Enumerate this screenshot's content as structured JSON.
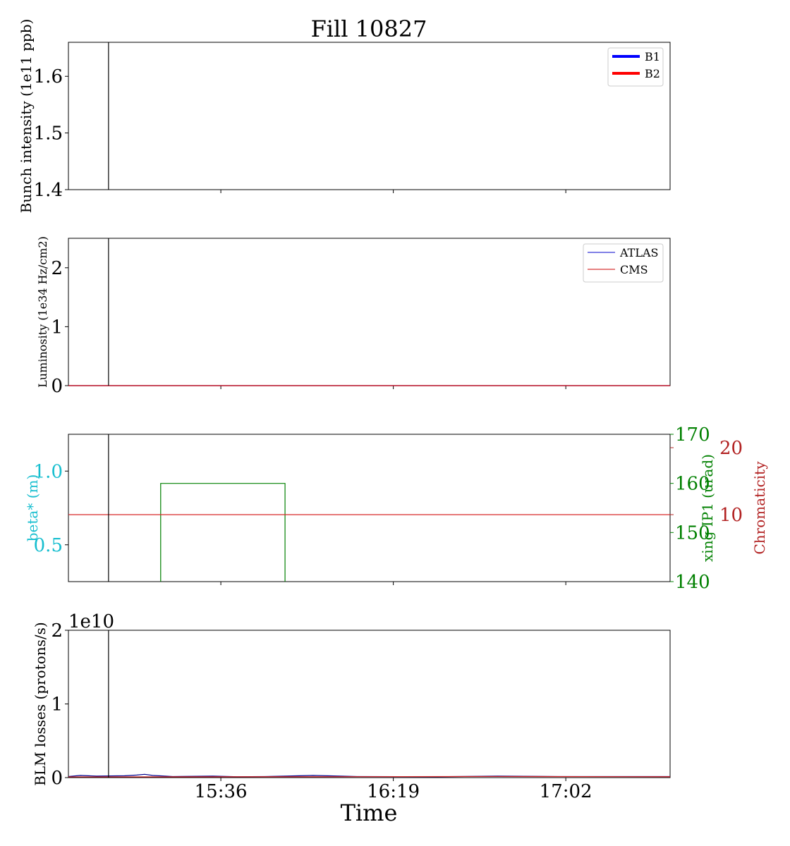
{
  "chart_data": {
    "type": "line",
    "title": "Fill 10827",
    "xlabel": "Time",
    "x_ticks": [
      "15:36",
      "16:19",
      "17:02"
    ],
    "x_range": [
      "14:58",
      "17:28"
    ],
    "marker_time": "15:08",
    "panels": [
      {
        "name": "intensity",
        "ylabel": "Bunch intensity (1e11 ppb)",
        "ylabel_color": "#000000",
        "ylim": [
          1.4,
          1.66
        ],
        "yticks": [
          "1.4",
          "1.5",
          "1.6"
        ],
        "tick_color": "#000000",
        "legend": [
          {
            "label": "B1",
            "color": "#0000ff",
            "thick": true
          },
          {
            "label": "B2",
            "color": "#ff0000",
            "thick": true
          }
        ],
        "series": []
      },
      {
        "name": "luminosity",
        "ylabel": "Luminosity (1e34 Hz/cm2)",
        "ylabel_color": "#000000",
        "ylim": [
          0,
          2.5
        ],
        "yticks": [
          "0",
          "1",
          "2"
        ],
        "tick_color": "#000000",
        "legend": [
          {
            "label": "ATLAS",
            "color": "#0000cc",
            "thick": false
          },
          {
            "label": "CMS",
            "color": "#cc0000",
            "thick": false
          }
        ],
        "series": [
          {
            "color": "#0000cc",
            "x": [
              "14:58",
              "17:28"
            ],
            "y": [
              0,
              0
            ]
          },
          {
            "color": "#cc0000",
            "x": [
              "14:58",
              "17:28"
            ],
            "y": [
              0,
              0
            ]
          }
        ]
      },
      {
        "name": "optics",
        "ylabel": "beta* (m)",
        "ylabel_color": "#17becf",
        "ylim": [
          0.25,
          1.25
        ],
        "yticks": [
          "0.5",
          "1.0"
        ],
        "tick_color": "#17becf",
        "right_axes": [
          {
            "ylabel": "xing IP1 (urad)",
            "color": "#008000",
            "ylim": [
              140,
              170
            ],
            "yticks": [
              "140",
              "150",
              "160",
              "170"
            ]
          },
          {
            "ylabel": "Chromaticity",
            "color": "#b22222",
            "ylim": [
              0,
              22
            ],
            "yticks": [
              "10",
              "20"
            ]
          }
        ],
        "series": [
          {
            "color": "#008000",
            "axis": "xing",
            "x": [
              "15:21",
              "15:21",
              "15:52",
              "15:52"
            ],
            "y": [
              140,
              160,
              160,
              140
            ]
          },
          {
            "color": "#d62728",
            "axis": "chroma",
            "x": [
              "14:58",
              "17:28"
            ],
            "y": [
              10,
              10
            ]
          }
        ]
      },
      {
        "name": "losses",
        "ylabel": "BLM losses (protons/s)",
        "ylabel_color": "#000000",
        "ylim": [
          0,
          2
        ],
        "yticks": [
          "0",
          "1",
          "2"
        ],
        "offset_text": "1e10",
        "tick_color": "#000000",
        "series": [
          {
            "color": "#00008b",
            "x": [
              "14:58",
              "15:01",
              "15:05",
              "15:12",
              "15:15",
              "15:17",
              "15:19",
              "15:24",
              "15:34",
              "15:40",
              "15:47",
              "15:52",
              "15:59",
              "16:10",
              "16:30",
              "16:45",
              "17:00",
              "17:28"
            ],
            "y": [
              0.015,
              0.03,
              0.02,
              0.025,
              0.035,
              0.045,
              0.03,
              0.015,
              0.02,
              0.012,
              0.015,
              0.02,
              0.03,
              0.015,
              0.012,
              0.02,
              0.015,
              0.015
            ]
          },
          {
            "color": "#d62728",
            "x": [
              "14:58",
              "16:00",
              "16:45",
              "17:28"
            ],
            "y": [
              0.01,
              0.012,
              0.015,
              0.012
            ]
          }
        ]
      }
    ]
  }
}
